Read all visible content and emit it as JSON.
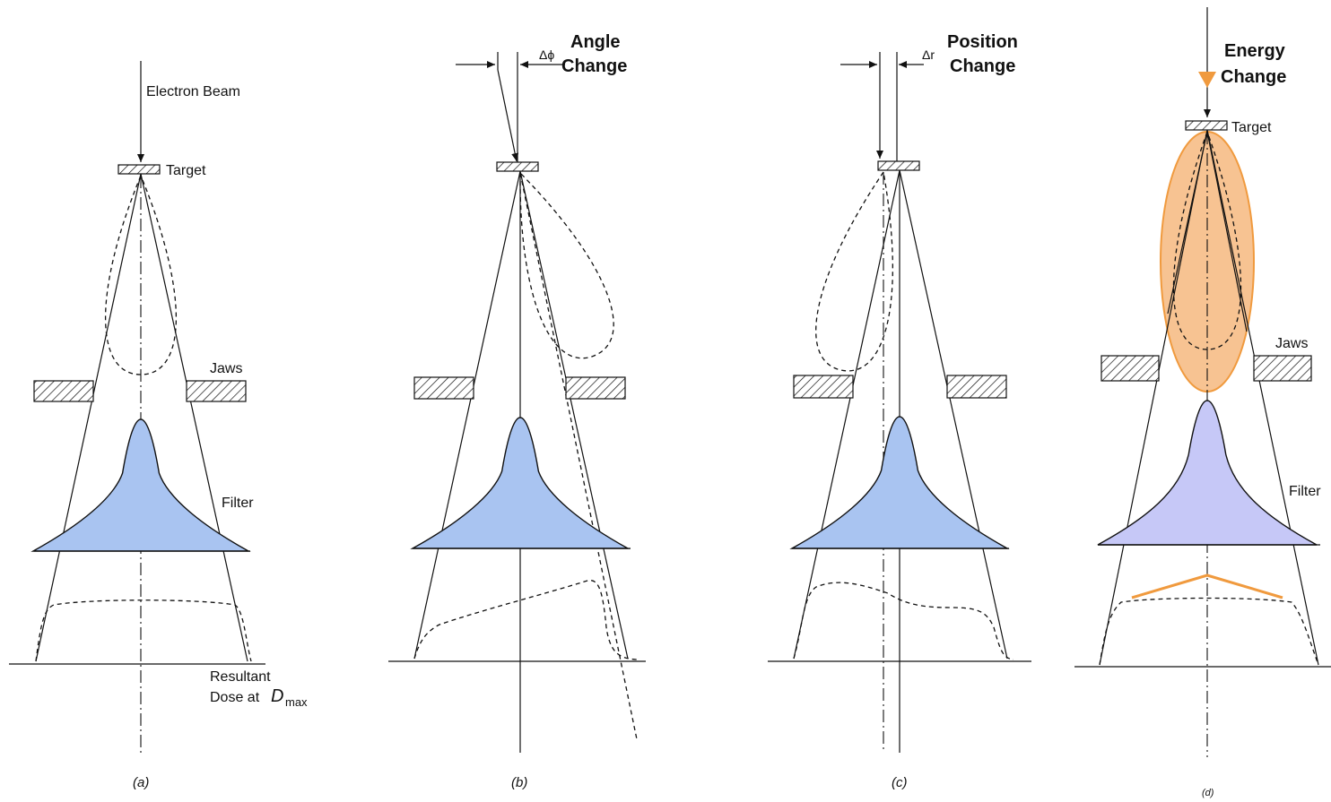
{
  "panels": [
    {
      "caption": "(a)",
      "beam": "Electron Beam",
      "target": "Target",
      "jaws": "Jaws",
      "filter": "Filter",
      "dose_line1": "Resultant",
      "dose_line2": "Dose at",
      "dose_symbol": "D",
      "dose_subscript": "max"
    },
    {
      "caption": "(b)",
      "delta": "Δϕ",
      "title": [
        "Angle",
        "Change"
      ]
    },
    {
      "caption": "(c)",
      "delta": "Δr",
      "title": [
        "Position",
        "Change"
      ]
    },
    {
      "caption": "(d)",
      "title": [
        "Energy",
        "Change"
      ],
      "target": "Target",
      "jaws": "Jaws",
      "filter": "Filter"
    }
  ]
}
